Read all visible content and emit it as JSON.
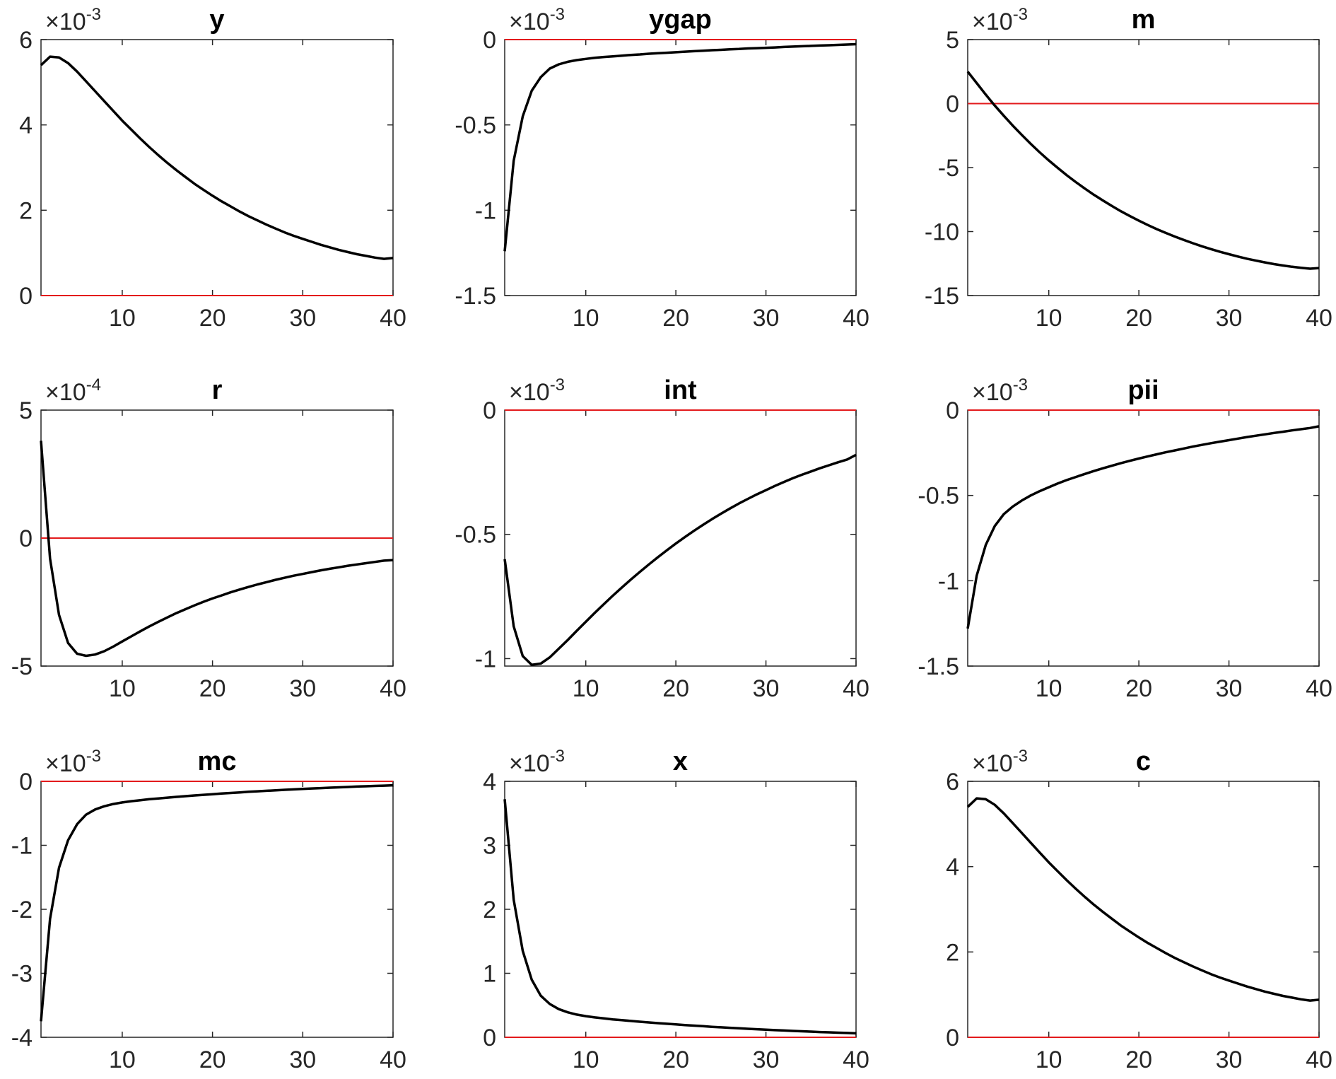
{
  "chart_data": [
    {
      "type": "line",
      "title": "y",
      "exponent": "-3",
      "xlim": [
        1,
        40
      ],
      "ylim": [
        0,
        6
      ],
      "xticks": [
        "10",
        "20",
        "30",
        "40"
      ],
      "yticks": [
        "0",
        "2",
        "4",
        "6"
      ],
      "baseline": 0,
      "x": [
        1,
        2,
        3,
        4,
        5,
        6,
        7,
        8,
        9,
        10,
        11,
        12,
        13,
        14,
        15,
        16,
        17,
        18,
        19,
        20,
        21,
        22,
        23,
        24,
        25,
        26,
        27,
        28,
        29,
        30,
        31,
        32,
        33,
        34,
        35,
        36,
        37,
        38,
        39,
        40
      ],
      "values": [
        5.4,
        5.6,
        5.58,
        5.45,
        5.25,
        5.02,
        4.79,
        4.56,
        4.33,
        4.1,
        3.89,
        3.68,
        3.48,
        3.29,
        3.11,
        2.94,
        2.78,
        2.62,
        2.48,
        2.34,
        2.21,
        2.09,
        1.97,
        1.86,
        1.76,
        1.66,
        1.57,
        1.48,
        1.4,
        1.33,
        1.26,
        1.19,
        1.13,
        1.07,
        1.02,
        0.97,
        0.93,
        0.89,
        0.86,
        0.88
      ]
    },
    {
      "type": "line",
      "title": "ygap",
      "exponent": "-3",
      "xlim": [
        1,
        40
      ],
      "ylim": [
        -1.5,
        0
      ],
      "xticks": [
        "10",
        "20",
        "30",
        "40"
      ],
      "yticks": [
        "-1.5",
        "-1",
        "-0.5",
        "0"
      ],
      "baseline": 0,
      "x": [
        1,
        2,
        3,
        4,
        5,
        6,
        7,
        8,
        9,
        10,
        11,
        12,
        13,
        14,
        15,
        16,
        17,
        18,
        19,
        20,
        21,
        22,
        23,
        24,
        25,
        26,
        27,
        28,
        29,
        30,
        31,
        32,
        33,
        34,
        35,
        36,
        37,
        38,
        39,
        40
      ],
      "values": [
        -1.24,
        -0.71,
        -0.45,
        -0.3,
        -0.22,
        -0.17,
        -0.145,
        -0.13,
        -0.12,
        -0.113,
        -0.107,
        -0.102,
        -0.098,
        -0.094,
        -0.09,
        -0.087,
        -0.083,
        -0.08,
        -0.077,
        -0.074,
        -0.071,
        -0.068,
        -0.065,
        -0.062,
        -0.06,
        -0.057,
        -0.055,
        -0.052,
        -0.05,
        -0.048,
        -0.046,
        -0.043,
        -0.041,
        -0.039,
        -0.037,
        -0.035,
        -0.033,
        -0.031,
        -0.029,
        -0.027
      ]
    },
    {
      "type": "line",
      "title": "m",
      "exponent": "-3",
      "xlim": [
        1,
        40
      ],
      "ylim": [
        -15,
        5
      ],
      "xticks": [
        "10",
        "20",
        "30",
        "40"
      ],
      "yticks": [
        "-15",
        "-10",
        "-5",
        "0",
        "5"
      ],
      "baseline": 0,
      "x": [
        1,
        2,
        3,
        4,
        5,
        6,
        7,
        8,
        9,
        10,
        11,
        12,
        13,
        14,
        15,
        16,
        17,
        18,
        19,
        20,
        21,
        22,
        23,
        24,
        25,
        26,
        27,
        28,
        29,
        30,
        31,
        32,
        33,
        34,
        35,
        36,
        37,
        38,
        39,
        40
      ],
      "values": [
        2.5,
        1.6,
        0.7,
        -0.15,
        -0.95,
        -1.72,
        -2.45,
        -3.15,
        -3.81,
        -4.44,
        -5.03,
        -5.6,
        -6.13,
        -6.64,
        -7.12,
        -7.57,
        -8.0,
        -8.41,
        -8.79,
        -9.15,
        -9.49,
        -9.81,
        -10.11,
        -10.39,
        -10.66,
        -10.91,
        -11.15,
        -11.37,
        -11.58,
        -11.77,
        -11.95,
        -12.12,
        -12.27,
        -12.41,
        -12.54,
        -12.65,
        -12.75,
        -12.83,
        -12.9,
        -12.85
      ]
    },
    {
      "type": "line",
      "title": "r",
      "exponent": "-4",
      "xlim": [
        1,
        40
      ],
      "ylim": [
        -5,
        5
      ],
      "xticks": [
        "10",
        "20",
        "30",
        "40"
      ],
      "yticks": [
        "-5",
        "0",
        "5"
      ],
      "baseline": 0,
      "x": [
        1,
        2,
        3,
        4,
        5,
        6,
        7,
        8,
        9,
        10,
        11,
        12,
        13,
        14,
        15,
        16,
        17,
        18,
        19,
        20,
        21,
        22,
        23,
        24,
        25,
        26,
        27,
        28,
        29,
        30,
        31,
        32,
        33,
        34,
        35,
        36,
        37,
        38,
        39,
        40
      ],
      "values": [
        3.8,
        -0.8,
        -3.0,
        -4.1,
        -4.52,
        -4.6,
        -4.55,
        -4.42,
        -4.24,
        -4.04,
        -3.84,
        -3.64,
        -3.45,
        -3.27,
        -3.1,
        -2.93,
        -2.78,
        -2.63,
        -2.49,
        -2.36,
        -2.24,
        -2.12,
        -2.01,
        -1.91,
        -1.81,
        -1.72,
        -1.63,
        -1.55,
        -1.47,
        -1.4,
        -1.33,
        -1.26,
        -1.2,
        -1.14,
        -1.08,
        -1.03,
        -0.98,
        -0.93,
        -0.88,
        -0.86
      ]
    },
    {
      "type": "line",
      "title": "int",
      "exponent": "-3",
      "xlim": [
        1,
        40
      ],
      "ylim": [
        -1.03,
        0
      ],
      "xticks": [
        "10",
        "20",
        "30",
        "40"
      ],
      "yticks": [
        "-1",
        "-0.5",
        "0"
      ],
      "baseline": 0,
      "x": [
        1,
        2,
        3,
        4,
        5,
        6,
        7,
        8,
        9,
        10,
        11,
        12,
        13,
        14,
        15,
        16,
        17,
        18,
        19,
        20,
        21,
        22,
        23,
        24,
        25,
        26,
        27,
        28,
        29,
        30,
        31,
        32,
        33,
        34,
        35,
        36,
        37,
        38,
        39,
        40
      ],
      "values": [
        -0.6,
        -0.87,
        -0.99,
        -1.025,
        -1.02,
        -0.995,
        -0.96,
        -0.925,
        -0.888,
        -0.852,
        -0.816,
        -0.781,
        -0.747,
        -0.714,
        -0.682,
        -0.651,
        -0.621,
        -0.592,
        -0.564,
        -0.537,
        -0.511,
        -0.486,
        -0.462,
        -0.439,
        -0.417,
        -0.396,
        -0.376,
        -0.357,
        -0.339,
        -0.322,
        -0.305,
        -0.289,
        -0.274,
        -0.26,
        -0.247,
        -0.234,
        -0.222,
        -0.21,
        -0.199,
        -0.18
      ]
    },
    {
      "type": "line",
      "title": "pii",
      "exponent": "-3",
      "xlim": [
        1,
        40
      ],
      "ylim": [
        -1.5,
        0
      ],
      "xticks": [
        "10",
        "20",
        "30",
        "40"
      ],
      "yticks": [
        "-1.5",
        "-1",
        "-0.5",
        "0"
      ],
      "baseline": 0,
      "x": [
        1,
        2,
        3,
        4,
        5,
        6,
        7,
        8,
        9,
        10,
        11,
        12,
        13,
        14,
        15,
        16,
        17,
        18,
        19,
        20,
        21,
        22,
        23,
        24,
        25,
        26,
        27,
        28,
        29,
        30,
        31,
        32,
        33,
        34,
        35,
        36,
        37,
        38,
        39,
        40
      ],
      "values": [
        -1.28,
        -0.97,
        -0.79,
        -0.68,
        -0.61,
        -0.565,
        -0.53,
        -0.5,
        -0.475,
        -0.452,
        -0.43,
        -0.41,
        -0.392,
        -0.374,
        -0.357,
        -0.341,
        -0.326,
        -0.311,
        -0.297,
        -0.284,
        -0.271,
        -0.259,
        -0.247,
        -0.236,
        -0.225,
        -0.214,
        -0.204,
        -0.194,
        -0.185,
        -0.176,
        -0.167,
        -0.158,
        -0.15,
        -0.142,
        -0.134,
        -0.127,
        -0.119,
        -0.112,
        -0.105,
        -0.095
      ]
    },
    {
      "type": "line",
      "title": "mc",
      "exponent": "-3",
      "xlim": [
        1,
        40
      ],
      "ylim": [
        -4,
        0
      ],
      "xticks": [
        "10",
        "20",
        "30",
        "40"
      ],
      "yticks": [
        "-4",
        "-3",
        "-2",
        "-1",
        "0"
      ],
      "baseline": 0,
      "x": [
        1,
        2,
        3,
        4,
        5,
        6,
        7,
        8,
        9,
        10,
        11,
        12,
        13,
        14,
        15,
        16,
        17,
        18,
        19,
        20,
        21,
        22,
        23,
        24,
        25,
        26,
        27,
        28,
        29,
        30,
        31,
        32,
        33,
        34,
        35,
        36,
        37,
        38,
        39,
        40
      ],
      "values": [
        -3.75,
        -2.15,
        -1.35,
        -0.92,
        -0.67,
        -0.52,
        -0.44,
        -0.39,
        -0.355,
        -0.33,
        -0.31,
        -0.295,
        -0.28,
        -0.267,
        -0.255,
        -0.243,
        -0.232,
        -0.221,
        -0.211,
        -0.201,
        -0.191,
        -0.182,
        -0.173,
        -0.164,
        -0.156,
        -0.148,
        -0.14,
        -0.133,
        -0.126,
        -0.119,
        -0.112,
        -0.106,
        -0.1,
        -0.094,
        -0.088,
        -0.082,
        -0.077,
        -0.072,
        -0.067,
        -0.062
      ]
    },
    {
      "type": "line",
      "title": "x",
      "exponent": "-3",
      "xlim": [
        1,
        40
      ],
      "ylim": [
        0,
        4
      ],
      "xticks": [
        "10",
        "20",
        "30",
        "40"
      ],
      "yticks": [
        "0",
        "1",
        "2",
        "3",
        "4"
      ],
      "baseline": 0,
      "x": [
        1,
        2,
        3,
        4,
        5,
        6,
        7,
        8,
        9,
        10,
        11,
        12,
        13,
        14,
        15,
        16,
        17,
        18,
        19,
        20,
        21,
        22,
        23,
        24,
        25,
        26,
        27,
        28,
        29,
        30,
        31,
        32,
        33,
        34,
        35,
        36,
        37,
        38,
        39,
        40
      ],
      "values": [
        3.72,
        2.15,
        1.35,
        0.9,
        0.65,
        0.52,
        0.44,
        0.39,
        0.355,
        0.33,
        0.31,
        0.295,
        0.28,
        0.267,
        0.255,
        0.243,
        0.232,
        0.221,
        0.211,
        0.201,
        0.191,
        0.182,
        0.173,
        0.164,
        0.156,
        0.148,
        0.14,
        0.133,
        0.126,
        0.119,
        0.112,
        0.106,
        0.1,
        0.094,
        0.088,
        0.082,
        0.077,
        0.072,
        0.067,
        0.062
      ]
    },
    {
      "type": "line",
      "title": "c",
      "exponent": "-3",
      "xlim": [
        1,
        40
      ],
      "ylim": [
        0,
        6
      ],
      "xticks": [
        "10",
        "20",
        "30",
        "40"
      ],
      "yticks": [
        "0",
        "2",
        "4",
        "6"
      ],
      "baseline": 0,
      "x": [
        1,
        2,
        3,
        4,
        5,
        6,
        7,
        8,
        9,
        10,
        11,
        12,
        13,
        14,
        15,
        16,
        17,
        18,
        19,
        20,
        21,
        22,
        23,
        24,
        25,
        26,
        27,
        28,
        29,
        30,
        31,
        32,
        33,
        34,
        35,
        36,
        37,
        38,
        39,
        40
      ],
      "values": [
        5.4,
        5.6,
        5.58,
        5.45,
        5.25,
        5.02,
        4.79,
        4.56,
        4.33,
        4.1,
        3.89,
        3.68,
        3.48,
        3.29,
        3.11,
        2.94,
        2.78,
        2.62,
        2.48,
        2.34,
        2.21,
        2.09,
        1.97,
        1.86,
        1.76,
        1.66,
        1.57,
        1.48,
        1.4,
        1.33,
        1.26,
        1.19,
        1.13,
        1.07,
        1.02,
        0.97,
        0.93,
        0.89,
        0.86,
        0.88
      ]
    }
  ],
  "style": {
    "line_color": "#000000",
    "baseline_color": "#e31a1c",
    "axis_color": "#262626",
    "exponent_prefix": "×10"
  }
}
